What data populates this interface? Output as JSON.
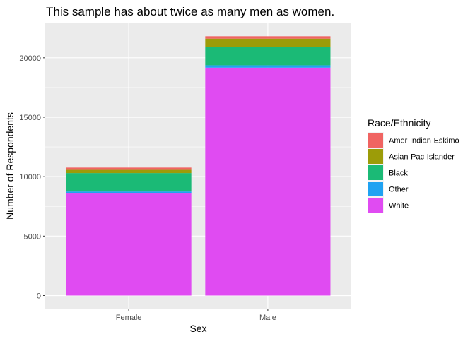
{
  "chart_data": {
    "type": "bar",
    "stacked": true,
    "title": "This sample has about twice as many men as women.",
    "xlabel": "Sex",
    "ylabel": "Number of Respondents",
    "categories": [
      "Female",
      "Male"
    ],
    "ylim": [
      -1100,
      22900
    ],
    "yticks": [
      0,
      5000,
      10000,
      15000,
      20000
    ],
    "ytick_labels": [
      "0",
      "5000",
      "10000",
      "15000",
      "20000"
    ],
    "grid": true,
    "legend": {
      "title": "Race/Ethnicity",
      "placement": "right"
    },
    "series": [
      {
        "name": "White",
        "color": "#E04BF2",
        "values": [
          8640,
          19170
        ]
      },
      {
        "name": "Other",
        "color": "#1FA2F2",
        "values": [
          110,
          200
        ]
      },
      {
        "name": "Black",
        "color": "#1BBA76",
        "values": [
          1550,
          1570
        ]
      },
      {
        "name": "Asian-Pac-Islander",
        "color": "#9C9C08",
        "values": [
          270,
          670
        ]
      },
      {
        "name": "Amer-Indian-Eskimo",
        "color": "#F06462",
        "values": [
          190,
          200
        ]
      }
    ],
    "legend_order": [
      "Amer-Indian-Eskimo",
      "Asian-Pac-Islander",
      "Black",
      "Other",
      "White"
    ]
  }
}
